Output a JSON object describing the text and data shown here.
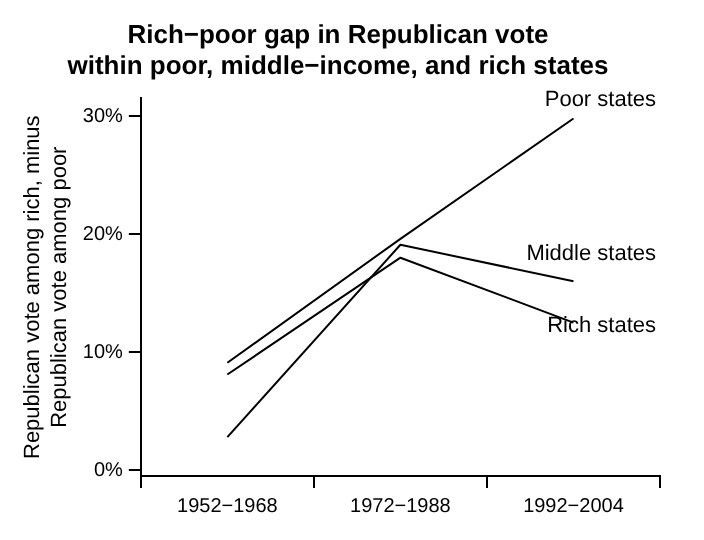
{
  "chart_data": {
    "type": "line",
    "title": "Rich−poor gap in Republican vote\nwithin poor, middle−income, and rich states",
    "ylabel": "Republican vote among rich, minus\nRepublican vote among poor",
    "categories": [
      "1952−1968",
      "1972−1988",
      "1992−2004"
    ],
    "series": [
      {
        "name": "Poor states",
        "color": "#000000",
        "values": [
          9.1,
          19.6,
          29.8
        ]
      },
      {
        "name": "Middle states",
        "color": "#000000",
        "values": [
          2.8,
          19.1,
          16.0
        ]
      },
      {
        "name": "Rich states",
        "color": "#000000",
        "values": [
          8.1,
          18.0,
          12.5
        ]
      }
    ],
    "ylim": [
      -0.5,
      31.5
    ],
    "yticks": [
      {
        "value": 0,
        "label": "0%"
      },
      {
        "value": 10,
        "label": "10%"
      },
      {
        "value": 20,
        "label": "20%"
      },
      {
        "value": 30,
        "label": "30%"
      }
    ],
    "grid": false,
    "legend": false,
    "marker": "none",
    "line_style": "solid"
  }
}
